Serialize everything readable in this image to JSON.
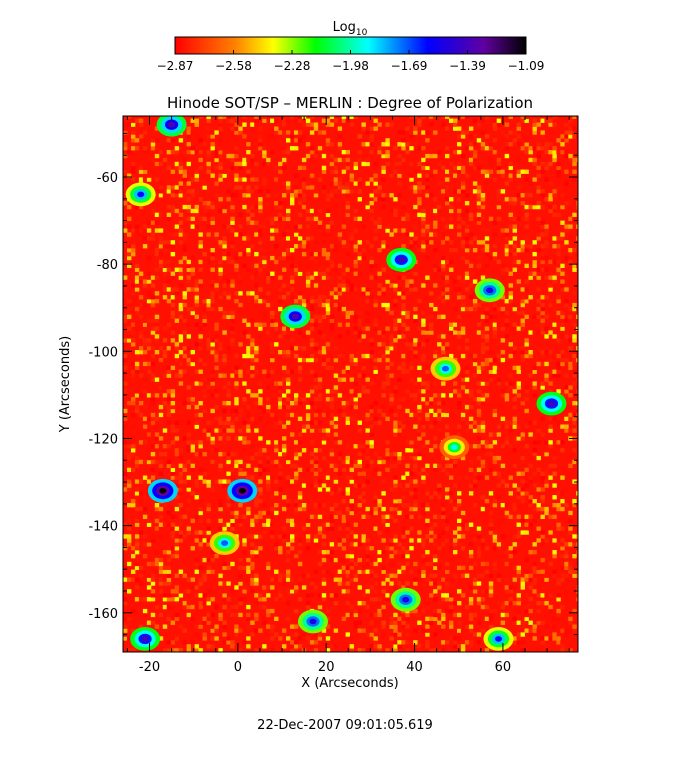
{
  "chart_data": {
    "type": "heatmap",
    "title": "Hinode SOT/SP – MERLIN : Degree of Polarization",
    "xlabel": "X (Arcseconds)",
    "ylabel": "Y (Arcseconds)",
    "xlim": [
      -26,
      77
    ],
    "ylim": [
      -169,
      -46
    ],
    "x_ticks": [
      -20,
      0,
      20,
      40,
      60
    ],
    "y_ticks": [
      -60,
      -80,
      -100,
      -120,
      -140,
      -160
    ],
    "colorbar": {
      "label_base": "Log",
      "label_sub": "10",
      "range": [
        -2.87,
        -1.09
      ],
      "tick_labels": [
        "−2.87",
        "−2.58",
        "−2.28",
        "−1.98",
        "−1.69",
        "−1.39",
        "−1.09"
      ],
      "colormap": "rainbow-red-to-black"
    },
    "background_value": -2.87,
    "patches": [
      {
        "x": -15,
        "y": -48,
        "v": -1.35
      },
      {
        "x": -22,
        "y": -64,
        "v": -1.6
      },
      {
        "x": 37,
        "y": -79,
        "v": -1.39
      },
      {
        "x": 13,
        "y": -92,
        "v": -1.35
      },
      {
        "x": 57,
        "y": -86,
        "v": -1.5
      },
      {
        "x": 47,
        "y": -104,
        "v": -1.7
      },
      {
        "x": 71,
        "y": -112,
        "v": -1.39
      },
      {
        "x": -17,
        "y": -132,
        "v": -1.09
      },
      {
        "x": 1,
        "y": -132,
        "v": -1.09
      },
      {
        "x": -3,
        "y": -144,
        "v": -1.7
      },
      {
        "x": 17,
        "y": -162,
        "v": -1.5
      },
      {
        "x": -21,
        "y": -166,
        "v": -1.39
      },
      {
        "x": 38,
        "y": -157,
        "v": -1.5
      },
      {
        "x": 59,
        "y": -166,
        "v": -1.6
      },
      {
        "x": 49,
        "y": -122,
        "v": -1.9
      }
    ]
  },
  "timestamp": "22-Dec-2007 09:01:05.619"
}
